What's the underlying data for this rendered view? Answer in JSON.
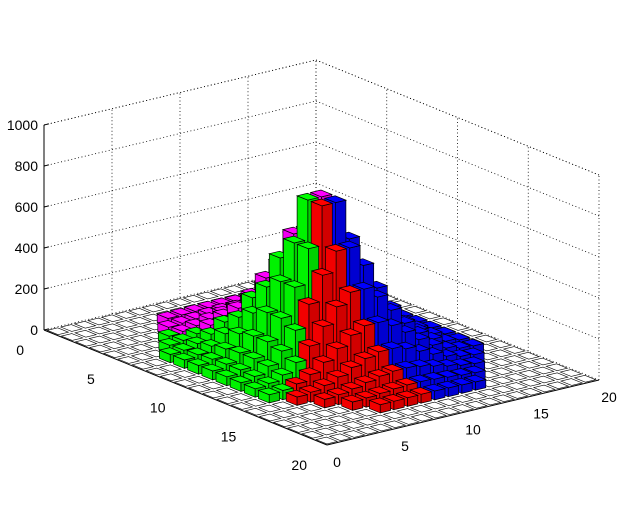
{
  "chart_data": {
    "type": "bar3d",
    "title": "",
    "xlabel": "",
    "ylabel": "",
    "zlabel": "",
    "x_range": [
      0,
      20
    ],
    "y_range": [
      0,
      20
    ],
    "z_range": [
      0,
      1000
    ],
    "x_ticks": [
      "0",
      "5",
      "10",
      "15",
      "20"
    ],
    "y_ticks": [
      "0",
      "5",
      "10",
      "15",
      "20"
    ],
    "z_ticks": [
      "0",
      "200",
      "400",
      "600",
      "800",
      "1000"
    ],
    "grid": true,
    "description_of_values": "Heights rise from ~40 at the rim of a circular region (radius ~8.5 centred at (10,10)) to ~950 at the centre; cells outside the region are empty (0). Columns are coloured by angular sector.",
    "peak_value": 950,
    "rim_value": 40,
    "region_radius": 8.5,
    "center": [
      10,
      10
    ],
    "sector_colors": [
      "#0000ff",
      "#ff00ff",
      "#00ff00",
      "#ff0000"
    ],
    "sectors": [
      {
        "color": "#0000ff",
        "from_deg": 0,
        "to_deg": 135
      },
      {
        "color": "#ff00ff",
        "from_deg": 135,
        "to_deg": 225
      },
      {
        "color": "#00ff00",
        "from_deg": 225,
        "to_deg": 300
      },
      {
        "color": "#ff0000",
        "from_deg": 300,
        "to_deg": 360
      }
    ]
  }
}
